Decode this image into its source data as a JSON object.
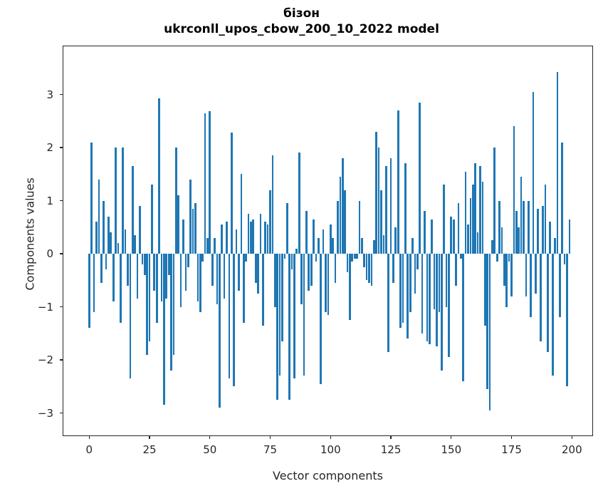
{
  "title": {
    "word": "бізон",
    "model_line": "ukrconll_upos_cbow_200_10_2022 model"
  },
  "chart_data": {
    "type": "bar",
    "title": "бізон",
    "subtitle": "ukrconll_upos_cbow_200_10_2022 model",
    "xlabel": "Vector components",
    "ylabel": "Components values",
    "x_range": [
      0,
      199
    ],
    "xlim": [
      -10.6,
      209.1
    ],
    "ylim": [
      -3.45,
      3.9
    ],
    "x_ticks": [
      0,
      25,
      50,
      75,
      100,
      125,
      150,
      175,
      200
    ],
    "y_ticks": [
      3,
      2,
      1,
      0,
      -1,
      -2,
      -3
    ],
    "bar_color": "#1f77b4",
    "grid": false,
    "legend": "none",
    "values": [
      -1.4,
      2.1,
      -1.1,
      0.6,
      1.4,
      -0.55,
      1.0,
      -0.3,
      0.7,
      0.4,
      -0.9,
      2.0,
      0.2,
      -1.3,
      2.0,
      0.45,
      -0.6,
      -2.35,
      1.65,
      0.35,
      -0.85,
      0.9,
      -0.2,
      -0.4,
      -1.9,
      -1.65,
      1.3,
      -0.7,
      -1.3,
      2.92,
      -0.9,
      -2.85,
      -0.85,
      -0.4,
      -2.2,
      -1.9,
      2.0,
      1.1,
      -1.0,
      0.65,
      -0.7,
      -0.25,
      1.4,
      0.85,
      0.95,
      -0.9,
      -1.1,
      -0.15,
      2.65,
      0.3,
      2.68,
      -0.6,
      0.3,
      -0.95,
      -2.9,
      0.55,
      -0.85,
      0.6,
      -2.35,
      2.28,
      -2.5,
      0.45,
      -0.7,
      1.5,
      -1.3,
      -0.15,
      0.75,
      0.6,
      0.65,
      -0.55,
      -0.75,
      0.75,
      -1.35,
      0.6,
      0.55,
      1.2,
      1.85,
      -1.0,
      -2.75,
      -2.3,
      -1.65,
      -0.1,
      0.95,
      -2.75,
      -0.3,
      -2.35,
      0.1,
      1.9,
      -0.95,
      -2.3,
      0.8,
      -0.7,
      -0.6,
      0.65,
      -0.15,
      0.3,
      -2.45,
      0.45,
      -1.1,
      -1.15,
      0.55,
      0.3,
      -0.55,
      1.0,
      1.45,
      1.8,
      1.2,
      -0.35,
      -1.25,
      -0.15,
      -0.1,
      -0.1,
      1.0,
      0.3,
      -0.25,
      -0.5,
      -0.55,
      -0.6,
      0.25,
      2.3,
      2.0,
      1.2,
      0.35,
      1.65,
      -1.85,
      1.8,
      -0.55,
      0.5,
      2.7,
      -1.4,
      -1.3,
      1.7,
      -1.6,
      -1.1,
      0.3,
      -0.75,
      -0.3,
      2.85,
      -1.5,
      0.8,
      -1.65,
      -1.7,
      0.65,
      -1.05,
      -1.75,
      -1.1,
      -2.2,
      1.3,
      -1.0,
      -1.95,
      0.7,
      0.65,
      -0.6,
      0.95,
      -0.1,
      -2.4,
      1.55,
      0.55,
      1.05,
      1.3,
      1.7,
      0.4,
      1.65,
      1.35,
      -1.35,
      -2.55,
      -2.95,
      0.25,
      2.0,
      -0.15,
      1.0,
      0.5,
      -0.6,
      -1.0,
      -0.15,
      -0.8,
      2.4,
      0.8,
      0.5,
      1.45,
      1.0,
      -0.8,
      1.0,
      -1.2,
      3.05,
      -0.75,
      0.85,
      -1.65,
      0.9,
      1.3,
      -1.85,
      0.6,
      -2.3,
      0.3,
      3.42,
      -1.2,
      2.1,
      -0.2,
      -2.5,
      0.65
    ]
  }
}
